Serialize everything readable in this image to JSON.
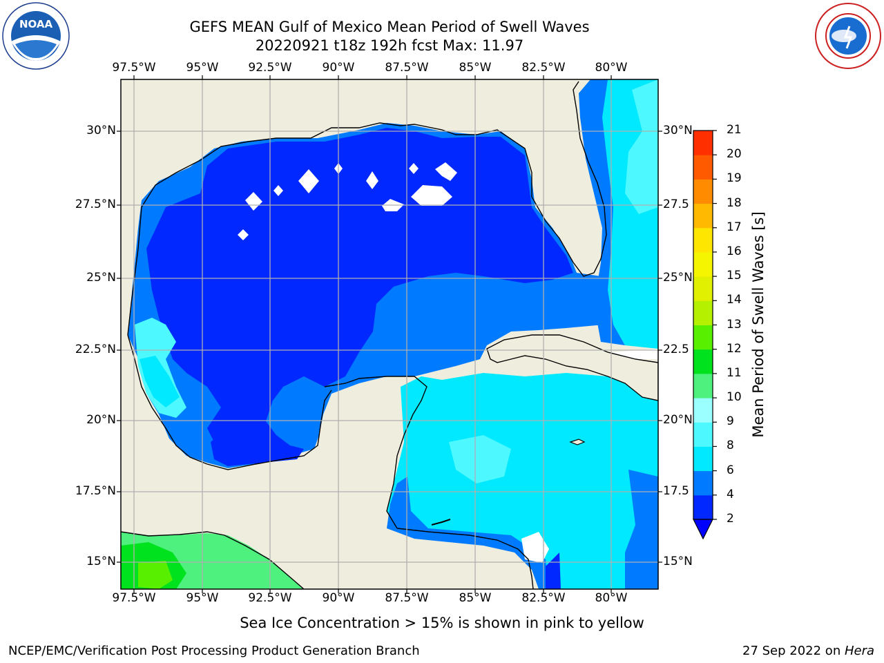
{
  "title": {
    "line1": "GEFS MEAN Gulf of Mexico Mean Period of Swell Waves",
    "line2": "20220921 t18z 192h fcst   Max: 11.97"
  },
  "map": {
    "lon_ticks": [
      "97.5°W",
      "95°W",
      "92.5°W",
      "90°W",
      "87.5°W",
      "85°W",
      "82.5°W",
      "80°W"
    ],
    "lat_ticks_left": [
      "30°N",
      "27.5°N",
      "25°N",
      "22.5°N",
      "20°N",
      "17.5°N",
      "15°N"
    ],
    "lat_ticks_right": [
      "30°N",
      "27.5",
      "25°N",
      "22.5",
      "20°N",
      "17.5",
      "15°N"
    ],
    "land_color": "#eeedde",
    "grid_color": "#b0b0b0"
  },
  "colorbar": {
    "label": "Mean Period of Swell Waves [s]",
    "ticks": [
      "2",
      "4",
      "6",
      "8",
      "9",
      "10",
      "11",
      "12",
      "13",
      "14",
      "15",
      "16",
      "17",
      "18",
      "19",
      "20",
      "21"
    ],
    "colors": [
      "#0028ff",
      "#007bff",
      "#00e9ff",
      "#4df8ff",
      "#9cffff",
      "#4ef07e",
      "#00e21e",
      "#58f000",
      "#b4f000",
      "#e0f000",
      "#f5f500",
      "#ffe600",
      "#ffb900",
      "#ff8c00",
      "#ff5a00",
      "#ff2f00",
      "#ff0000"
    ],
    "under_color": "#0000ff"
  },
  "caption": "Sea Ice Concentration > 15% is shown in pink to yellow",
  "footer": {
    "left": "NCEP/EMC/Verification Post Processing Product Generation Branch",
    "right_date": "27 Sep 2022 on ",
    "right_host": "Hera"
  },
  "logos": {
    "noaa": "NOAA",
    "nws": "NATIONAL WEATHER SERVICE"
  }
}
